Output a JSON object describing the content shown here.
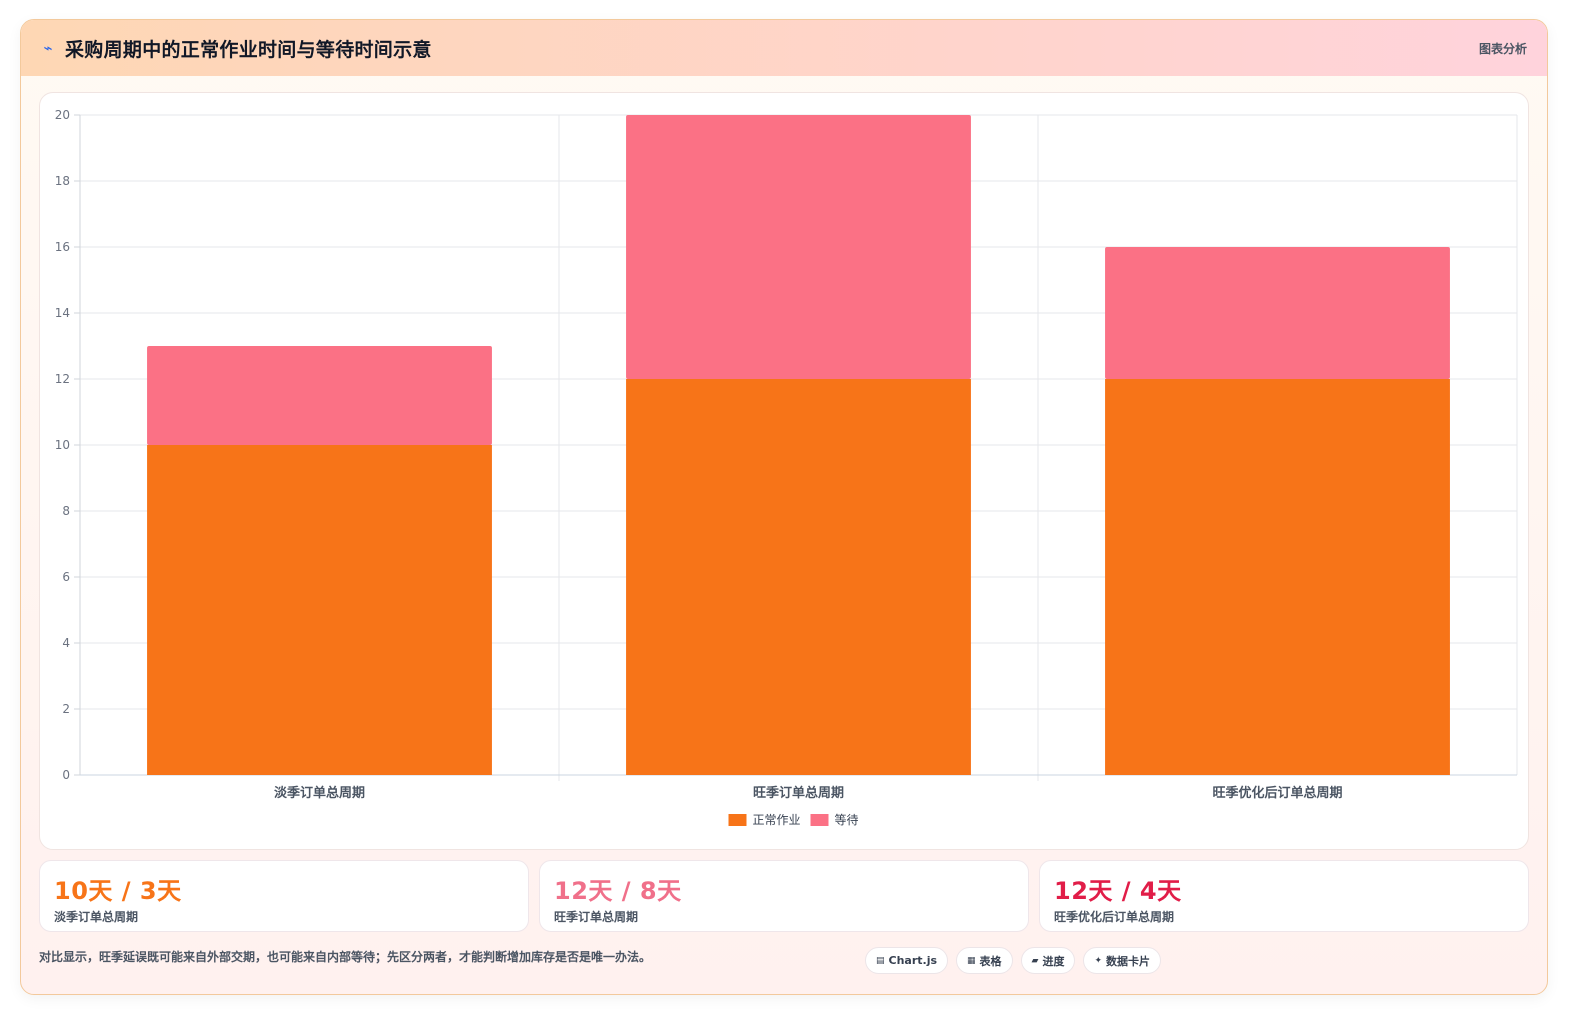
{
  "header": {
    "icon": "wave-icon",
    "title": "采购周期中的正常作业时间与等待时间示意",
    "tag": "图表分析"
  },
  "chart_data": {
    "type": "bar",
    "stacked": true,
    "categories": [
      "淡季订单总周期",
      "旺季订单总周期",
      "旺季优化后订单总周期"
    ],
    "series": [
      {
        "name": "正常作业",
        "values": [
          10,
          12,
          12
        ],
        "color": "#f77418"
      },
      {
        "name": "等待",
        "values": [
          3,
          8,
          4
        ],
        "color": "#fb7185"
      }
    ],
    "ylim": [
      0,
      20
    ],
    "yticks": [
      0,
      2,
      4,
      6,
      8,
      10,
      12,
      14,
      16,
      18,
      20
    ],
    "grid": true,
    "legend": "bottom-center",
    "xlabel": "",
    "ylabel": ""
  },
  "stats": [
    {
      "value": "10天 / 3天",
      "label": "淡季订单总周期",
      "color": "#f77418"
    },
    {
      "value": "12天 / 8天",
      "label": "旺季订单总周期",
      "color": "#f0708a"
    },
    {
      "value": "12天 / 4天",
      "label": "旺季优化后订单总周期",
      "color": "#e11d48"
    }
  ],
  "footer": {
    "note": "对比显示，旺季延误既可能来自外部交期，也可能来自内部等待；先区分两者，才能判断增加库存是否是唯一办法。",
    "pills": [
      {
        "icon": "chart-icon",
        "glyph": "▤",
        "label": "Chart.js"
      },
      {
        "icon": "table-icon",
        "glyph": "▦",
        "label": "表格"
      },
      {
        "icon": "progress-icon",
        "glyph": "▰",
        "label": "进度"
      },
      {
        "icon": "sparkle-icon",
        "glyph": "✦",
        "label": "数据卡片"
      }
    ]
  }
}
